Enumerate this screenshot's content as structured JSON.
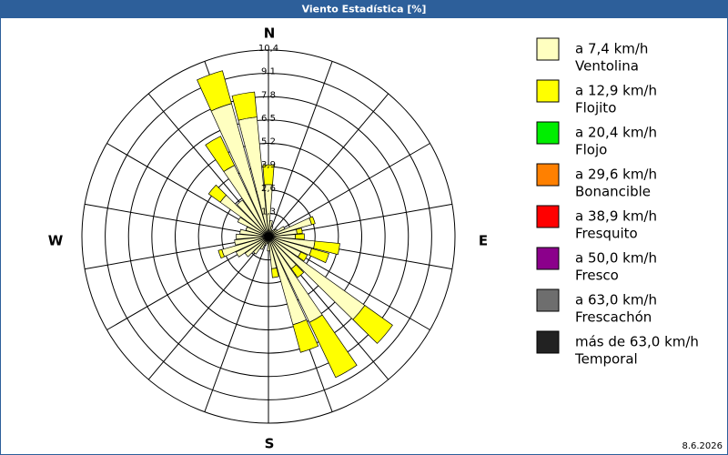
{
  "chart_data": {
    "type": "windrose",
    "title": "Viento Estadística [%]",
    "date": "8.6.2026",
    "compass_labels": [
      "N",
      "E",
      "S",
      "W"
    ],
    "x": [
      0,
      10,
      20,
      30,
      40,
      50,
      60,
      70,
      80,
      90,
      100,
      110,
      120,
      130,
      140,
      150,
      160,
      170,
      180,
      190,
      200,
      210,
      220,
      230,
      240,
      250,
      260,
      270,
      280,
      290,
      300,
      310,
      320,
      330,
      340,
      350
    ],
    "ylim": [
      0,
      10.4
    ],
    "yticks": [
      {
        "value": 1.3,
        "label": "1,3"
      },
      {
        "value": 2.6,
        "label": "2,6"
      },
      {
        "value": 3.9,
        "label": "3,9"
      },
      {
        "value": 5.2,
        "label": "5,2"
      },
      {
        "value": 6.5,
        "label": "6,5"
      },
      {
        "value": 7.8,
        "label": "7,8"
      },
      {
        "value": 9.1,
        "label": "9,1"
      },
      {
        "value": 10.4,
        "label": "10,4"
      }
    ],
    "series": [
      {
        "name": "a 7,4 km/h",
        "description": "Ventolina",
        "color": "#ffffc0",
        "values": [
          2.9,
          0.9,
          0.6,
          0.4,
          0.5,
          0.6,
          1.0,
          2.5,
          1.6,
          1.5,
          2.6,
          2.5,
          2.0,
          6.6,
          2.2,
          5.3,
          5.1,
          1.8,
          0.8,
          0.4,
          0.5,
          0.8,
          1.2,
          1.6,
          2.0,
          2.7,
          1.9,
          1.8,
          1.6,
          1.3,
          1.9,
          3.3,
          2.5,
          4.4,
          7.7,
          6.7
        ]
      },
      {
        "name": "a 12,9 km/h",
        "description": "Flojito",
        "color": "#ffff00",
        "values": [
          1.1,
          0,
          0,
          0,
          0,
          0,
          0,
          0.2,
          0.3,
          0.5,
          1.4,
          1.0,
          0.4,
          1.9,
          0.6,
          3.4,
          1.6,
          0.5,
          0,
          0,
          0,
          0,
          0,
          0,
          0,
          0.2,
          0,
          0,
          0,
          0,
          0,
          0.8,
          0,
          1.8,
          1.9,
          1.4
        ]
      },
      {
        "name": "a 20,4 km/h",
        "description": "Flojo",
        "color": "#00ee00",
        "values": [
          0,
          0,
          0,
          0,
          0,
          0,
          0,
          0,
          0,
          0,
          0,
          0,
          0,
          0,
          0,
          0,
          0,
          0,
          0,
          0,
          0,
          0,
          0,
          0,
          0,
          0,
          0,
          0,
          0,
          0,
          0,
          0,
          0,
          0,
          0,
          0
        ]
      },
      {
        "name": "a 29,6 km/h",
        "description": "Bonancible",
        "color": "#ff8000",
        "values": [
          0,
          0,
          0,
          0,
          0,
          0,
          0,
          0,
          0,
          0,
          0,
          0,
          0,
          0,
          0,
          0,
          0,
          0,
          0,
          0,
          0,
          0,
          0,
          0,
          0,
          0,
          0,
          0,
          0,
          0,
          0,
          0,
          0,
          0,
          0,
          0
        ]
      },
      {
        "name": "a 38,9 km/h",
        "description": "Fresquito",
        "color": "#ff0000",
        "values": [
          0,
          0,
          0,
          0,
          0,
          0,
          0,
          0,
          0,
          0,
          0,
          0,
          0,
          0,
          0,
          0,
          0,
          0,
          0,
          0,
          0,
          0,
          0,
          0,
          0,
          0,
          0,
          0,
          0,
          0,
          0,
          0,
          0,
          0,
          0,
          0
        ]
      },
      {
        "name": "a 50,0 km/h",
        "description": "Fresco",
        "color": "#8b008b",
        "values": [
          0,
          0,
          0,
          0,
          0,
          0,
          0,
          0,
          0,
          0,
          0,
          0,
          0,
          0,
          0,
          0,
          0,
          0,
          0,
          0,
          0,
          0,
          0,
          0,
          0,
          0,
          0,
          0,
          0,
          0,
          0,
          0,
          0,
          0,
          0,
          0
        ]
      },
      {
        "name": "a 63,0 km/h",
        "description": "Frescachón",
        "color": "#6e6e6e",
        "values": [
          0,
          0,
          0,
          0,
          0,
          0,
          0,
          0,
          0,
          0,
          0,
          0,
          0,
          0,
          0,
          0,
          0,
          0,
          0,
          0,
          0,
          0,
          0,
          0,
          0,
          0,
          0,
          0,
          0,
          0,
          0,
          0,
          0,
          0,
          0,
          0
        ]
      },
      {
        "name": "más de 63,0 km/h",
        "description": "Temporal",
        "color": "#222222",
        "values": [
          0,
          0,
          0,
          0,
          0,
          0,
          0,
          0,
          0,
          0,
          0,
          0,
          0,
          0,
          0,
          0,
          0,
          0,
          0,
          0,
          0,
          0,
          0,
          0,
          0,
          0,
          0,
          0,
          0,
          0,
          0,
          0,
          0,
          0,
          0,
          0
        ]
      }
    ]
  }
}
